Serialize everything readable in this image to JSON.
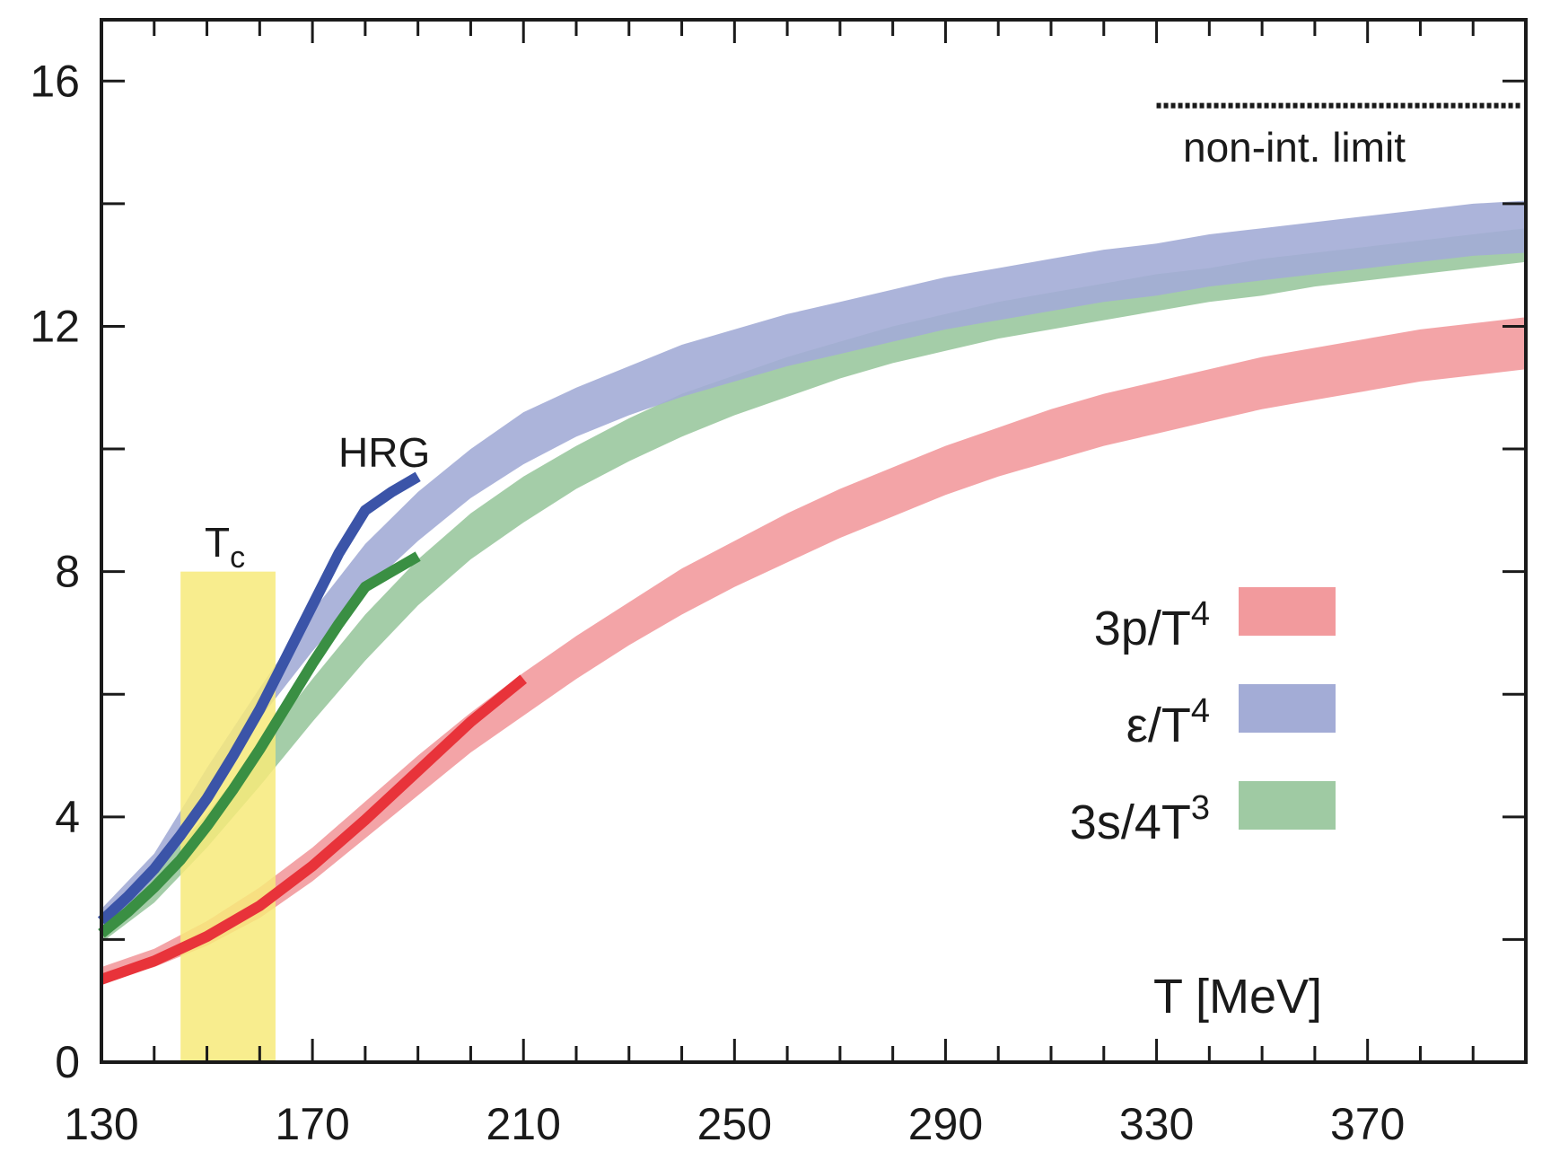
{
  "chart_data": {
    "type": "area",
    "title": "",
    "xlabel": "T [MeV]",
    "ylabel": "",
    "xlim": [
      130,
      400
    ],
    "ylim": [
      0,
      17
    ],
    "x_ticks": [
      130,
      170,
      210,
      250,
      290,
      330,
      370
    ],
    "y_ticks": [
      0,
      4,
      8,
      12,
      16
    ],
    "x_minor_step": 10,
    "y_minor_step": 2,
    "grid": false,
    "legend_position": "right",
    "annotations": {
      "tc_label": "T",
      "tc_sub": "c",
      "hrg_label": "HRG",
      "limit_label": "non-int. limit"
    },
    "tc_band": {
      "x": [
        145,
        163
      ],
      "y": [
        0,
        8
      ],
      "color": "#f7ea7a"
    },
    "noninteracting_limit": {
      "value": 15.6,
      "x": [
        330,
        400
      ]
    },
    "series": [
      {
        "key": "p",
        "name_base": "3p/T",
        "name_sup": "4",
        "color": "#f29a9d",
        "line_color": "#e8333a",
        "x": [
          130,
          140,
          150,
          160,
          170,
          180,
          190,
          200,
          210,
          220,
          230,
          240,
          250,
          260,
          270,
          280,
          290,
          300,
          310,
          320,
          330,
          340,
          350,
          360,
          370,
          380,
          390,
          400
        ],
        "lower": [
          1.3,
          1.55,
          1.9,
          2.35,
          2.95,
          3.65,
          4.35,
          5.05,
          5.65,
          6.25,
          6.8,
          7.3,
          7.75,
          8.15,
          8.55,
          8.9,
          9.25,
          9.55,
          9.8,
          10.05,
          10.25,
          10.45,
          10.65,
          10.8,
          10.95,
          11.1,
          11.2,
          11.3
        ],
        "upper": [
          1.55,
          1.85,
          2.3,
          2.85,
          3.5,
          4.25,
          5.0,
          5.7,
          6.35,
          6.95,
          7.5,
          8.05,
          8.5,
          8.95,
          9.35,
          9.7,
          10.05,
          10.35,
          10.65,
          10.9,
          11.1,
          11.3,
          11.5,
          11.65,
          11.8,
          11.95,
          12.05,
          12.15
        ]
      },
      {
        "key": "e",
        "name_base": "ε/T",
        "name_sup": "4",
        "color": "#a3acd6",
        "line_color": "#3b54a8",
        "x": [
          130,
          140,
          150,
          160,
          170,
          180,
          190,
          200,
          210,
          220,
          230,
          240,
          250,
          260,
          270,
          280,
          290,
          300,
          310,
          320,
          330,
          340,
          350,
          360,
          370,
          380,
          390,
          400
        ],
        "lower": [
          2.1,
          3.0,
          4.3,
          5.6,
          6.7,
          7.7,
          8.5,
          9.2,
          9.75,
          10.2,
          10.55,
          10.85,
          11.1,
          11.35,
          11.55,
          11.75,
          11.95,
          12.1,
          12.25,
          12.4,
          12.5,
          12.65,
          12.75,
          12.85,
          12.95,
          13.05,
          13.15,
          13.2
        ],
        "upper": [
          2.5,
          3.4,
          4.8,
          6.1,
          7.35,
          8.45,
          9.3,
          10.0,
          10.6,
          11.0,
          11.35,
          11.7,
          11.95,
          12.2,
          12.4,
          12.6,
          12.8,
          12.95,
          13.1,
          13.25,
          13.35,
          13.5,
          13.6,
          13.7,
          13.8,
          13.9,
          14.0,
          14.05
        ]
      },
      {
        "key": "s",
        "name_base": "3s/4T",
        "name_sup": "3",
        "color": "#9fcaa3",
        "line_color": "#3a8f43",
        "x": [
          130,
          140,
          150,
          160,
          170,
          180,
          190,
          200,
          210,
          220,
          230,
          240,
          250,
          260,
          270,
          280,
          290,
          300,
          310,
          320,
          330,
          340,
          350,
          360,
          370,
          380,
          390,
          400
        ],
        "lower": [
          1.95,
          2.6,
          3.5,
          4.5,
          5.55,
          6.55,
          7.45,
          8.2,
          8.8,
          9.35,
          9.8,
          10.2,
          10.55,
          10.85,
          11.15,
          11.4,
          11.6,
          11.8,
          11.95,
          12.1,
          12.25,
          12.4,
          12.5,
          12.65,
          12.75,
          12.85,
          12.95,
          13.05
        ],
        "upper": [
          2.3,
          3.05,
          4.05,
          5.15,
          6.25,
          7.3,
          8.2,
          8.95,
          9.55,
          10.05,
          10.5,
          10.9,
          11.2,
          11.5,
          11.75,
          12.0,
          12.2,
          12.4,
          12.55,
          12.7,
          12.85,
          12.95,
          13.1,
          13.2,
          13.3,
          13.4,
          13.5,
          13.6
        ]
      }
    ],
    "hrg_curves": [
      {
        "key": "e",
        "x": [
          130,
          135,
          140,
          145,
          150,
          155,
          160,
          165,
          170,
          175,
          180,
          185,
          190
        ],
        "y": [
          2.3,
          2.7,
          3.15,
          3.7,
          4.3,
          5.0,
          5.75,
          6.6,
          7.45,
          8.3,
          9.0,
          9.3,
          9.55
        ]
      },
      {
        "key": "s",
        "x": [
          130,
          135,
          140,
          145,
          150,
          155,
          160,
          165,
          170,
          175,
          180,
          185,
          190
        ],
        "y": [
          2.1,
          2.45,
          2.85,
          3.3,
          3.85,
          4.45,
          5.1,
          5.8,
          6.5,
          7.15,
          7.75,
          8.0,
          8.25
        ]
      },
      {
        "key": "p",
        "x": [
          130,
          140,
          150,
          160,
          170,
          180,
          190,
          200,
          210
        ],
        "y": [
          1.35,
          1.65,
          2.05,
          2.55,
          3.2,
          3.95,
          4.75,
          5.55,
          6.25
        ]
      }
    ]
  }
}
